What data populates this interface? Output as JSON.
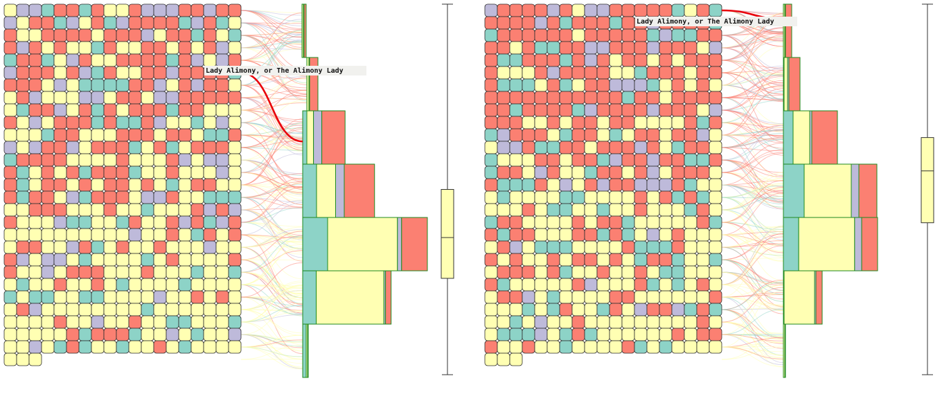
{
  "colors": {
    "teal": "#8dd3c7",
    "yellow": "#ffffb3",
    "lavender": "#bebada",
    "salmon": "#fb8072",
    "highlight": "#e8000b",
    "bar_border": "#1f8a1f"
  },
  "chart_data": [
    {
      "type": "unit-grid-with-stacked-histogram",
      "title": "",
      "highlight_label": "Lady Alimony, or The Alimony Lady",
      "highlight_index": 100,
      "grid_columns": 19,
      "grid_rows": 29,
      "count": 535,
      "category_order": [
        "teal",
        "yellow",
        "lavender",
        "salmon"
      ],
      "grid_pattern": "salmon-heavy-top",
      "bins": [
        {
          "bin": 1,
          "teal": 0,
          "yellow": 2,
          "lavender": 1,
          "salmon": 3
        },
        {
          "bin": 2,
          "teal": 0,
          "yellow": 3,
          "lavender": 1,
          "salmon": 12
        },
        {
          "bin": 3,
          "teal": 5,
          "yellow": 8,
          "lavender": 10,
          "salmon": 28
        },
        {
          "bin": 4,
          "teal": 16,
          "yellow": 22,
          "lavender": 10,
          "salmon": 35
        },
        {
          "bin": 5,
          "teal": 30,
          "yellow": 84,
          "lavender": 5,
          "salmon": 31
        },
        {
          "bin": 6,
          "teal": 17,
          "yellow": 85,
          "lavender": 2,
          "salmon": 7
        },
        {
          "bin": 7,
          "teal": 5,
          "yellow": 2,
          "lavender": 0,
          "salmon": 1
        }
      ],
      "boxplot": {
        "min": 0,
        "q1": 0.5,
        "median": 0.63,
        "q3": 0.74,
        "max": 1
      }
    },
    {
      "type": "unit-grid-with-stacked-histogram",
      "title": "",
      "highlight_label": "Lady Alimony, or The Alimony Lady",
      "highlight_index": 12,
      "grid_columns": 19,
      "grid_rows": 29,
      "count": 535,
      "category_order": [
        "teal",
        "yellow",
        "lavender",
        "salmon"
      ],
      "grid_pattern": "salmon-top-then-mixed",
      "bins": [
        {
          "bin": 1,
          "teal": 0,
          "yellow": 2,
          "lavender": 1,
          "salmon": 9
        },
        {
          "bin": 2,
          "teal": 1,
          "yellow": 5,
          "lavender": 2,
          "salmon": 16
        },
        {
          "bin": 3,
          "teal": 14,
          "yellow": 24,
          "lavender": 3,
          "salmon": 37
        },
        {
          "bin": 4,
          "teal": 30,
          "yellow": 68,
          "lavender": 11,
          "salmon": 26
        },
        {
          "bin": 5,
          "teal": 26,
          "yellow": 95,
          "lavender": 12,
          "salmon": 27
        },
        {
          "bin": 6,
          "teal": 1,
          "yellow": 44,
          "lavender": 2,
          "salmon": 9
        },
        {
          "bin": 7,
          "teal": 0,
          "yellow": 2,
          "lavender": 0,
          "salmon": 1
        }
      ],
      "boxplot": {
        "min": 0,
        "q1": 0.36,
        "median": 0.45,
        "q3": 0.59,
        "max": 1
      }
    }
  ]
}
